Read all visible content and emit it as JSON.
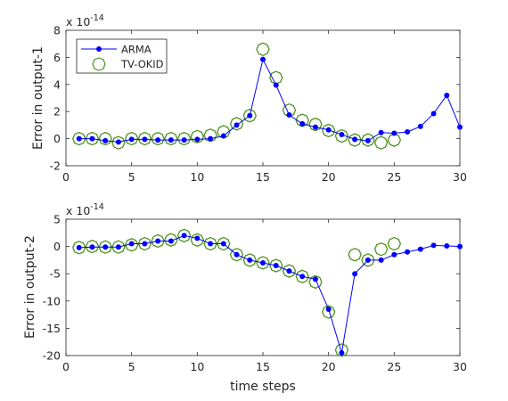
{
  "chart_data": [
    {
      "type": "line",
      "ylabel": "Error in output-1",
      "xlabel": "",
      "xlim": [
        0,
        30
      ],
      "ylim": [
        -2,
        8
      ],
      "y_exponent_label": "x 10",
      "y_exponent": "-14",
      "xticks": [
        "0",
        "5",
        "10",
        "15",
        "20",
        "25",
        "30"
      ],
      "yticks": [
        "-2",
        "0",
        "2",
        "4",
        "6",
        "8"
      ],
      "grid": false,
      "legend": {
        "placement": "top-left",
        "entries": [
          "ARMA",
          "TV-OKID"
        ]
      },
      "series": [
        {
          "name": "ARMA",
          "style": "line-dot",
          "color": "#0000ff",
          "x": [
            1,
            2,
            3,
            4,
            5,
            6,
            7,
            8,
            9,
            10,
            11,
            12,
            13,
            14,
            15,
            16,
            17,
            18,
            19,
            20,
            21,
            22,
            23,
            24,
            25,
            26,
            27,
            28,
            29,
            30
          ],
          "y": [
            0.0,
            0.0,
            -0.15,
            -0.25,
            -0.05,
            -0.05,
            -0.1,
            -0.1,
            -0.1,
            -0.05,
            0.0,
            0.2,
            1.0,
            1.7,
            5.85,
            3.95,
            1.75,
            1.1,
            0.85,
            0.65,
            0.3,
            -0.05,
            -0.15,
            0.45,
            0.4,
            0.5,
            0.9,
            1.85,
            3.2,
            0.85
          ]
        },
        {
          "name": "TV-OKID",
          "style": "diamond",
          "color": "#4d9221",
          "x": [
            1,
            2,
            3,
            4,
            5,
            6,
            7,
            8,
            9,
            10,
            11,
            12,
            13,
            14,
            15,
            16,
            17,
            18,
            19,
            20,
            21,
            22,
            23,
            24,
            25
          ],
          "y": [
            0.0,
            0.0,
            0.0,
            -0.3,
            0.0,
            0.0,
            0.0,
            0.0,
            0.0,
            0.15,
            0.25,
            0.5,
            1.1,
            1.7,
            6.6,
            4.5,
            2.1,
            1.35,
            1.05,
            0.6,
            0.2,
            -0.1,
            -0.1,
            -0.3,
            -0.1
          ]
        }
      ]
    },
    {
      "type": "line",
      "ylabel": "Error in output-2",
      "xlabel": "time steps",
      "xlim": [
        0,
        30
      ],
      "ylim": [
        -20,
        5
      ],
      "y_exponent_label": "x 10",
      "y_exponent": "-14",
      "xticks": [
        "0",
        "5",
        "10",
        "15",
        "20",
        "25",
        "30"
      ],
      "yticks": [
        "-20",
        "-15",
        "-10",
        "-5",
        "0",
        "5"
      ],
      "grid": false,
      "series": [
        {
          "name": "ARMA",
          "style": "line-dot",
          "color": "#0000ff",
          "x": [
            1,
            2,
            3,
            4,
            5,
            6,
            7,
            8,
            9,
            10,
            11,
            12,
            13,
            14,
            15,
            16,
            17,
            18,
            19,
            20,
            21,
            22,
            23,
            24,
            25,
            26,
            27,
            28,
            29,
            30
          ],
          "y": [
            -0.2,
            -0.1,
            -0.1,
            -0.1,
            0.5,
            0.5,
            1.0,
            1.0,
            2.0,
            1.5,
            0.5,
            0.5,
            -1.5,
            -2.5,
            -3.0,
            -3.5,
            -4.5,
            -5.5,
            -6.0,
            -11.5,
            -19.5,
            -5.0,
            -2.5,
            -2.5,
            -1.5,
            -1.0,
            -0.5,
            0.2,
            0.1,
            0.0
          ]
        },
        {
          "name": "TV-OKID",
          "style": "diamond",
          "color": "#4d9221",
          "x": [
            1,
            2,
            3,
            4,
            5,
            6,
            7,
            8,
            9,
            10,
            11,
            12,
            13,
            14,
            15,
            16,
            17,
            18,
            19,
            20,
            21,
            22,
            23,
            24,
            25
          ],
          "y": [
            -0.2,
            0.0,
            -0.1,
            -0.1,
            0.3,
            0.5,
            1.0,
            1.2,
            2.0,
            1.2,
            0.5,
            0.5,
            -1.5,
            -2.5,
            -3.0,
            -3.5,
            -4.5,
            -5.5,
            -6.5,
            -12.0,
            -19.0,
            -1.5,
            -2.5,
            -0.5,
            0.5
          ]
        }
      ]
    }
  ]
}
